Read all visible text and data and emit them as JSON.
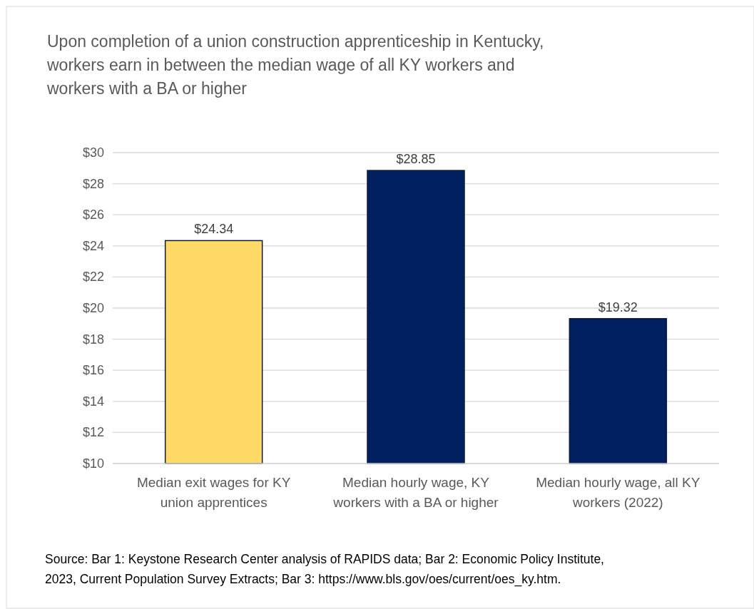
{
  "chart_data": {
    "type": "bar",
    "title": "Upon completion of a union construction apprenticeship in Kentucky, workers earn in between the median wage of all KY workers and workers with a BA or higher",
    "categories": [
      "Median exit wages for KY union apprentices",
      "Median hourly wage, KY workers with a BA or higher",
      "Median hourly wage, all KY workers (2022)"
    ],
    "values": [
      24.34,
      28.85,
      19.32
    ],
    "colors": [
      "#ffd966",
      "#002060",
      "#002060"
    ],
    "value_labels": [
      "$24.34",
      "$28.85",
      "$19.32"
    ],
    "ylim": [
      10,
      30
    ],
    "yticks": [
      {
        "value": 10,
        "label": "$10"
      },
      {
        "value": 12,
        "label": "$12"
      },
      {
        "value": 14,
        "label": "$14"
      },
      {
        "value": 16,
        "label": "$16"
      },
      {
        "value": 18,
        "label": "$18"
      },
      {
        "value": 20,
        "label": "$20"
      },
      {
        "value": 22,
        "label": "$22"
      },
      {
        "value": 24,
        "label": "$24"
      },
      {
        "value": 26,
        "label": "$26"
      },
      {
        "value": 28,
        "label": "$28"
      },
      {
        "value": 30,
        "label": "$30"
      }
    ],
    "grid": "y",
    "annotations": [
      "Source: Bar 1: Keystone Research Center analysis of RAPIDS data; Bar 2: Economic Policy Institute, 2023, Current Population Survey Extracts; Bar 3: https://www.bls.gov/oes/current/oes_ky.htm."
    ]
  }
}
